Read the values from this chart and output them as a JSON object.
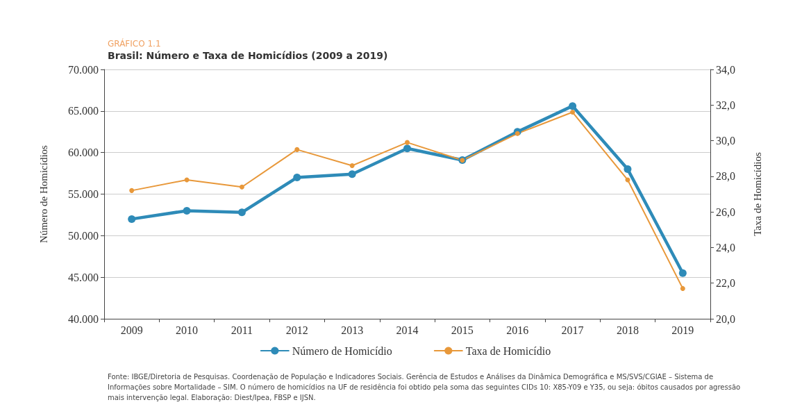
{
  "chart_data": {
    "type": "line",
    "subtitle": "GRÁFICO 1.1",
    "title": "Brasil: Número e Taxa de Homicídios (2009 a 2019)",
    "ylabel": "Número de Homicídios",
    "y2label": "Taxa de Homicídios",
    "categories": [
      "2009",
      "2010",
      "2011",
      "2012",
      "2013",
      "2014",
      "2015",
      "2016",
      "2017",
      "2018",
      "2019"
    ],
    "series": [
      {
        "name": "Número de Homicídio",
        "color": "#2e8bb8",
        "values": [
          52000,
          53000,
          52800,
          57000,
          57400,
          60500,
          59100,
          62500,
          65600,
          58000,
          45500
        ]
      },
      {
        "name": "Taxa de Homicídio",
        "color": "#e8983a",
        "axis": "y2",
        "values": [
          27.2,
          27.8,
          27.4,
          29.5,
          28.6,
          29.9,
          28.9,
          30.4,
          31.6,
          27.8,
          21.7
        ]
      }
    ],
    "ylim": [
      40000,
      70000
    ],
    "yticks": [
      {
        "value": 40000,
        "label": "40.000"
      },
      {
        "value": 45000,
        "label": "45.000"
      },
      {
        "value": 50000,
        "label": "50.000"
      },
      {
        "value": 55000,
        "label": "55.000"
      },
      {
        "value": 60000,
        "label": "60.000"
      },
      {
        "value": 65000,
        "label": "65.000"
      },
      {
        "value": 70000,
        "label": "70.000"
      }
    ],
    "y2lim": [
      20,
      34
    ],
    "y2ticks": [
      {
        "value": 20,
        "label": "20,0"
      },
      {
        "value": 22,
        "label": "22,0"
      },
      {
        "value": 24,
        "label": "24,0"
      },
      {
        "value": 26,
        "label": "26,0"
      },
      {
        "value": 28,
        "label": "28,0"
      },
      {
        "value": 30,
        "label": "30,0"
      },
      {
        "value": 32,
        "label": "32,0"
      },
      {
        "value": 34,
        "label": "34,0"
      }
    ],
    "grid": "y",
    "legend": "bottom",
    "marker": "circle",
    "line_style": "solid",
    "annotations": [
      "Fonte: IBGE/Diretoria de Pesquisas. Coordenação de População e Indicadores Sociais. Gerência de Estudos e Análises da Dinâmica Demográfica e MS/SVS/CGIAE – Sistema de Informações sobre Mortalidade – SIM. O número de homicídios na UF de residência foi obtido pela soma das seguintes CIDs 10: X85-Y09 e Y35, ou seja: óbitos causados por agressão mais intervenção legal. Elaboração: Diest/Ipea, FBSP e IJSN."
    ]
  }
}
